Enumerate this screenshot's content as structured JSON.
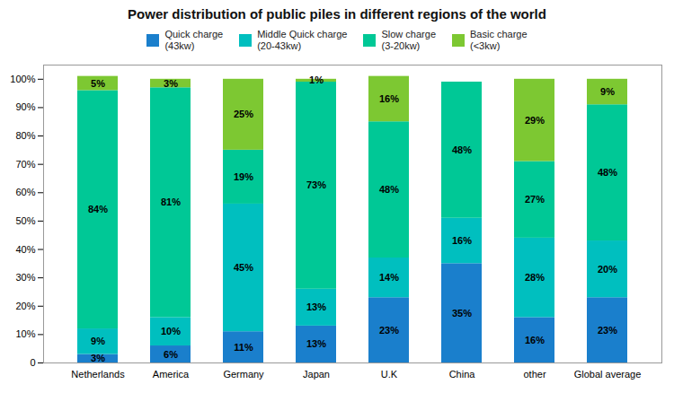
{
  "chart_data": {
    "type": "bar",
    "title": "Power distribution of public piles in different regions of the world",
    "categories": [
      "Netherlands",
      "America",
      "Germany",
      "Japan",
      "U.K",
      "China",
      "other",
      "Global average"
    ],
    "stacked": true,
    "data_labels": true,
    "legend": "top",
    "grid": false,
    "ylim": [
      0,
      105
    ],
    "yticks": [
      0,
      {
        "value": 10,
        "label": "10%"
      },
      {
        "value": 20,
        "label": "20%"
      },
      {
        "value": 30,
        "label": "30%"
      },
      {
        "value": 40,
        "label": "40%"
      },
      {
        "value": 50,
        "label": "50%"
      },
      {
        "value": 60,
        "label": "60%"
      },
      {
        "value": 70,
        "label": "70%"
      },
      {
        "value": 80,
        "label": "80%"
      },
      {
        "value": 90,
        "label": "90%"
      },
      {
        "value": 100,
        "label": "100%"
      }
    ],
    "series": [
      {
        "name": "Quick charge\n(43kw)",
        "color": "#1A7FCC",
        "values": [
          3,
          6,
          11,
          13,
          23,
          35,
          16,
          23
        ],
        "value_labels": [
          "3%",
          "6%",
          "11%",
          "13%",
          "23%",
          "35%",
          "16%",
          "23%"
        ]
      },
      {
        "name": "Middle Quick charge\n(20-43kw)",
        "color": "#00BFBF",
        "values": [
          9,
          10,
          45,
          13,
          14,
          16,
          28,
          20
        ],
        "value_labels": [
          "9%",
          "10%",
          "45%",
          "13%",
          "14%",
          "16%",
          "28%",
          "20%"
        ]
      },
      {
        "name": "Slow charge\n(3-20kw)",
        "color": "#00C896",
        "values": [
          84,
          81,
          19,
          73,
          48,
          48,
          27,
          48
        ],
        "value_labels": [
          "84%",
          "81%",
          "19%",
          "73%",
          "48%",
          "48%",
          "27%",
          "48%"
        ]
      },
      {
        "name": "Basic charge\n(<3kw)",
        "color": "#7DC832",
        "values": [
          5,
          3,
          25,
          1,
          16,
          0,
          29,
          9
        ],
        "value_labels": [
          "5%",
          "3%",
          "25%",
          "1%",
          "16%",
          null,
          "29%",
          "9%"
        ]
      }
    ]
  }
}
